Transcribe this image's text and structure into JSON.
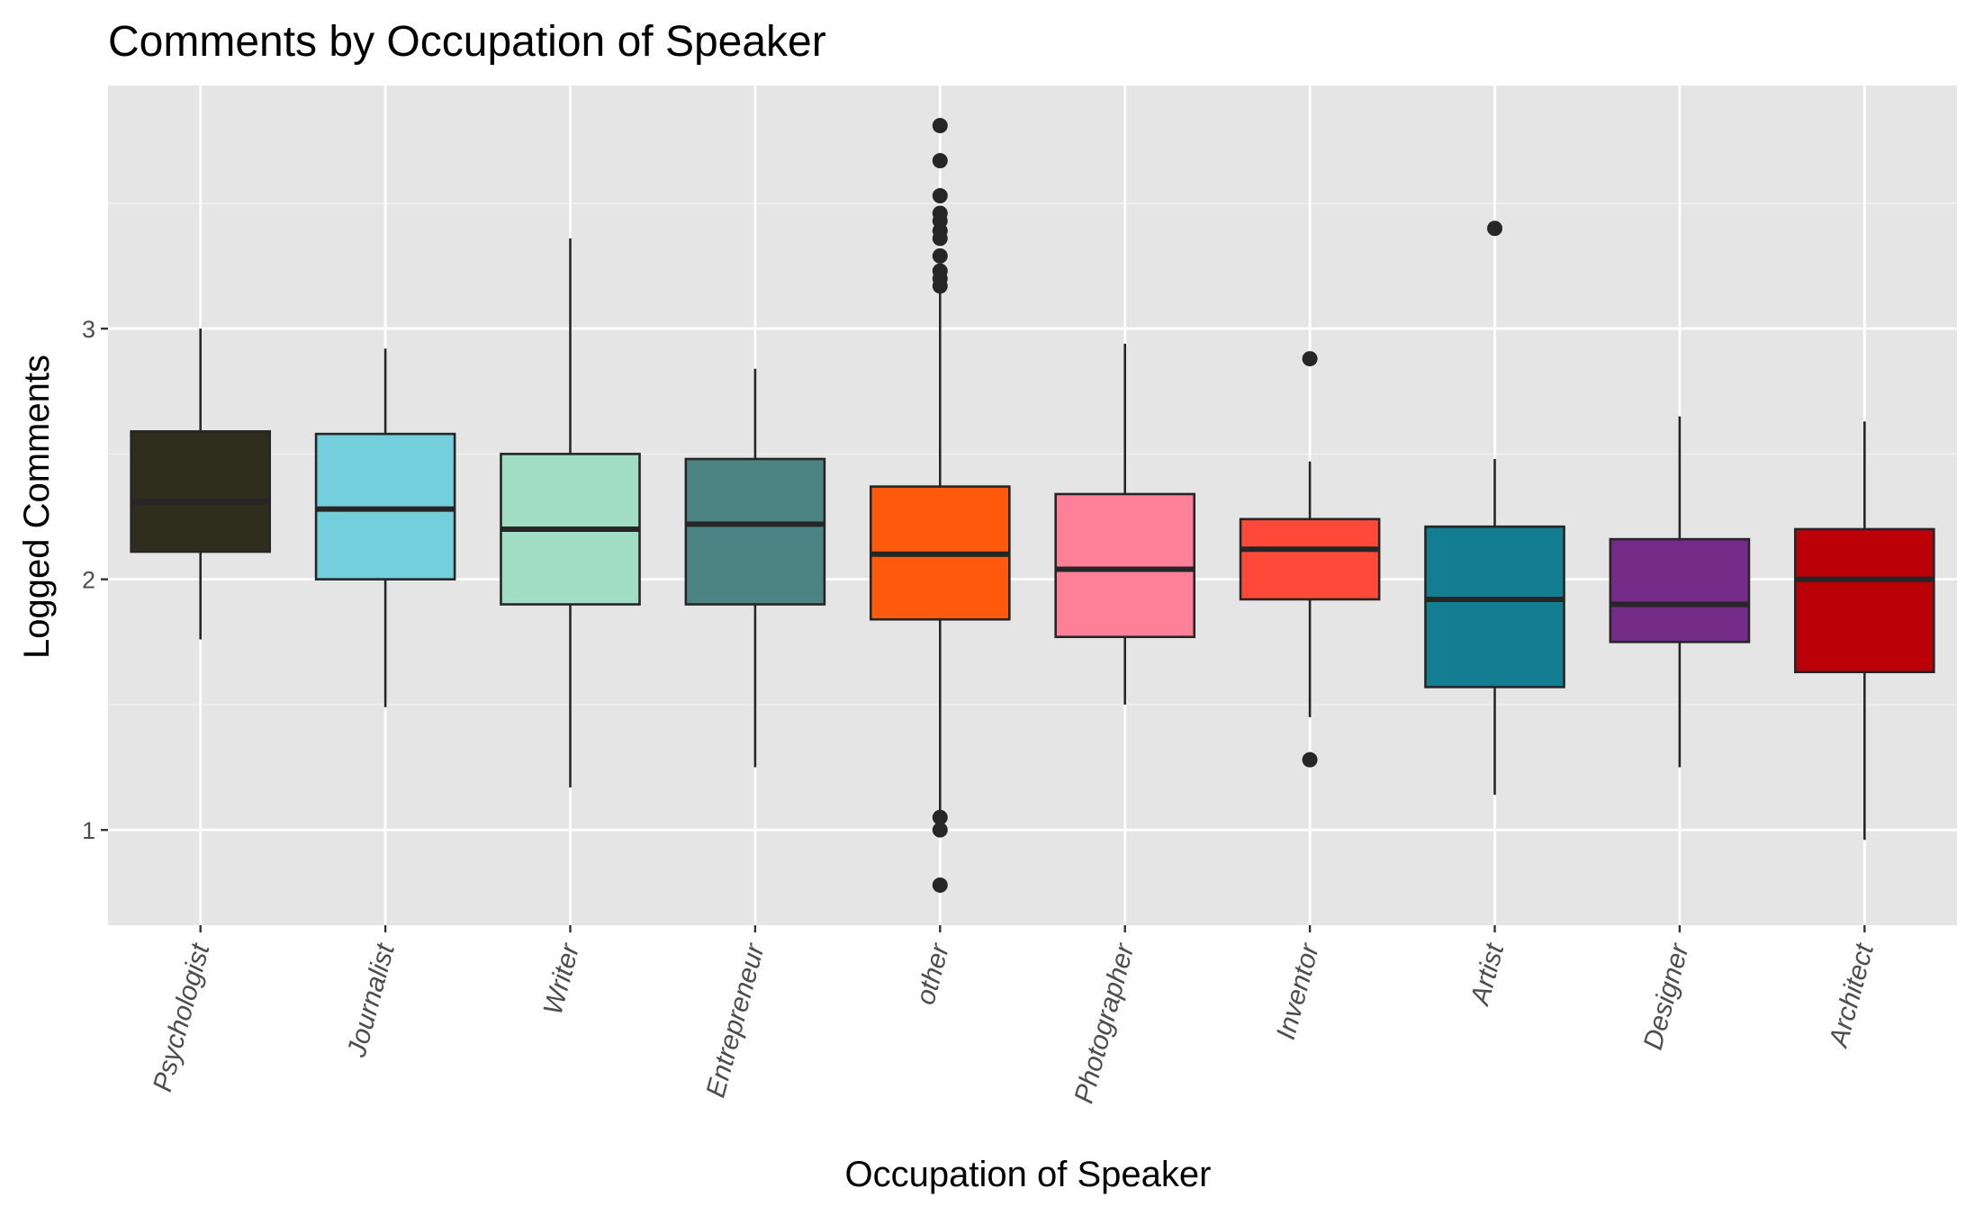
{
  "chart_data": {
    "type": "boxplot",
    "title": "Comments by Occupation of Speaker",
    "xlabel": "Occupation of Speaker",
    "ylabel": "Logged Comments",
    "ylim": [
      0.62,
      3.97
    ],
    "yticks": [
      1,
      2,
      3
    ],
    "grid": true,
    "legend": "none",
    "categories": [
      "Psychologist",
      "Journalist",
      "Writer",
      "Entrepreneur",
      "other",
      "Photographer",
      "Inventor",
      "Artist",
      "Designer",
      "Architect"
    ],
    "colors": [
      "#2f2e1e",
      "#72cfdb",
      "#a0ddc4",
      "#4b8483",
      "#ff5a0c",
      "#fe8098",
      "#ff4a3a",
      "#137e91",
      "#752b88",
      "#bc0008"
    ],
    "boxes": [
      {
        "min": 1.76,
        "q1": 2.11,
        "median": 2.31,
        "q3": 2.59,
        "max": 3.0,
        "outliers": []
      },
      {
        "min": 1.49,
        "q1": 2.0,
        "median": 2.28,
        "q3": 2.58,
        "max": 2.92,
        "outliers": []
      },
      {
        "min": 1.17,
        "q1": 1.9,
        "median": 2.2,
        "q3": 2.5,
        "max": 3.36,
        "outliers": []
      },
      {
        "min": 1.25,
        "q1": 1.9,
        "median": 2.22,
        "q3": 2.48,
        "max": 2.84,
        "outliers": []
      },
      {
        "min": 1.07,
        "q1": 1.84,
        "median": 2.1,
        "q3": 2.37,
        "max": 3.15,
        "outliers": [
          3.81,
          3.67,
          3.53,
          3.46,
          3.43,
          3.39,
          3.36,
          3.29,
          3.23,
          3.2,
          3.17,
          1.05,
          1.0,
          0.78
        ]
      },
      {
        "min": 1.5,
        "q1": 1.77,
        "median": 2.04,
        "q3": 2.34,
        "max": 2.94,
        "outliers": []
      },
      {
        "min": 1.45,
        "q1": 1.92,
        "median": 2.12,
        "q3": 2.24,
        "max": 2.47,
        "outliers": [
          2.88,
          1.28
        ]
      },
      {
        "min": 1.14,
        "q1": 1.57,
        "median": 1.92,
        "q3": 2.21,
        "max": 2.48,
        "outliers": [
          3.4
        ]
      },
      {
        "min": 1.25,
        "q1": 1.75,
        "median": 1.9,
        "q3": 2.16,
        "max": 2.65,
        "outliers": []
      },
      {
        "min": 0.96,
        "q1": 1.63,
        "median": 2.0,
        "q3": 2.2,
        "max": 2.63,
        "outliers": []
      }
    ]
  }
}
